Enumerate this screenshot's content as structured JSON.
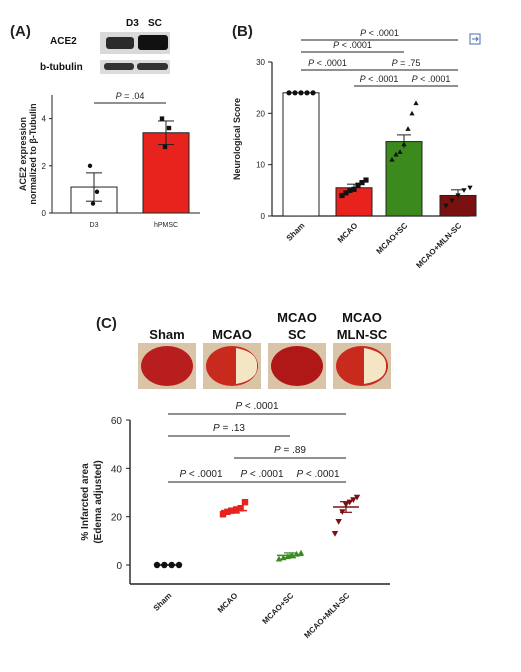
{
  "panels": {
    "a_label": "(A)",
    "b_label": "(B)",
    "c_label": "(C)"
  },
  "western_blot": {
    "lanes": [
      "D3",
      "SC"
    ],
    "rows": [
      "ACE2",
      "b-tubulin"
    ]
  },
  "brain_slices": {
    "labels": [
      {
        "line1": "Sham",
        "line2": ""
      },
      {
        "line1": "MCAO",
        "line2": ""
      },
      {
        "line1": "MCAO",
        "line2": "SC"
      },
      {
        "line1": "MCAO",
        "line2": "MLN-SC"
      }
    ]
  },
  "expand_icon": "expand-icon",
  "colors": {
    "red": "#e8221c",
    "green": "#3a8a1e",
    "darkred": "#7a1010",
    "black": "#111111"
  },
  "chart_data": [
    {
      "id": "A",
      "type": "bar",
      "ylabel_line1": "ACE2 expression",
      "ylabel_line2": "normalized to β-Tubulin",
      "ylim": [
        0,
        5
      ],
      "yticks": [
        "0",
        "2",
        "4"
      ],
      "categories": [
        "D3",
        "hPMSC"
      ],
      "values": [
        1.1,
        3.4
      ],
      "errors": [
        0.6,
        0.5
      ],
      "points": [
        [
          2.0,
          0.9,
          0.4
        ],
        [
          4.0,
          3.6,
          2.8
        ]
      ],
      "comparisons": [
        {
          "from": 0,
          "to": 1,
          "label": "P = .04"
        }
      ]
    },
    {
      "id": "B",
      "type": "bar",
      "ylabel": "Neurological Score",
      "ylim": [
        0,
        30
      ],
      "yticks": [
        "0",
        "10",
        "20",
        "30"
      ],
      "categories": [
        "Sham",
        "MCAO",
        "MCAO+SC",
        "MCAO+MLN-SC"
      ],
      "values": [
        24,
        5.5,
        14.5,
        4
      ],
      "errors": [
        0,
        0.7,
        1.3,
        1.1
      ],
      "points": [
        [
          24,
          24,
          24,
          24,
          24
        ],
        [
          4,
          4.5,
          5,
          5.2,
          6,
          6.5,
          7
        ],
        [
          11,
          12,
          12.5,
          14,
          17,
          20,
          22
        ],
        [
          2,
          3,
          4,
          5,
          5.5
        ]
      ],
      "comparisons": [
        {
          "from": 0,
          "to": 3,
          "label": "P < .0001"
        },
        {
          "from": 0,
          "to": 2,
          "label": "P < .0001"
        },
        {
          "from": 1,
          "to": 3,
          "label": "P = .75"
        },
        {
          "from": 0,
          "to": 1,
          "label": "P < .0001"
        },
        {
          "from": 1,
          "to": 2,
          "label": "P < .0001"
        },
        {
          "from": 2,
          "to": 3,
          "label": "P < .0001"
        }
      ]
    },
    {
      "id": "C",
      "type": "scatter",
      "ylabel_line1": "% Infarcted area",
      "ylabel_line2": "(Edema adjusted)",
      "ylim": [
        0,
        60
      ],
      "yticks": [
        "0",
        "20",
        "40",
        "60"
      ],
      "categories": [
        "Sham",
        "MCAO",
        "MCAO+SC",
        "MCAO+MLN-SC"
      ],
      "means": [
        0,
        22.5,
        4,
        24
      ],
      "errors": [
        0,
        1,
        1,
        2.2
      ],
      "points": [
        [
          0,
          0,
          0,
          0
        ],
        [
          21,
          22,
          22.5,
          23,
          23.5,
          26
        ],
        [
          2.5,
          3,
          3.5,
          4,
          4.5,
          5
        ],
        [
          13,
          18,
          22,
          25,
          26,
          27,
          28
        ]
      ],
      "comparisons": [
        {
          "from": 0,
          "to": 3,
          "label": "P < .0001"
        },
        {
          "from": 0,
          "to": 2,
          "label": "P = .13"
        },
        {
          "from": 1,
          "to": 3,
          "label": "P = .89"
        },
        {
          "from": 0,
          "to": 1,
          "label": "P < .0001"
        },
        {
          "from": 1,
          "to": 2,
          "label": "P < .0001"
        },
        {
          "from": 2,
          "to": 3,
          "label": "P < .0001"
        }
      ]
    }
  ]
}
